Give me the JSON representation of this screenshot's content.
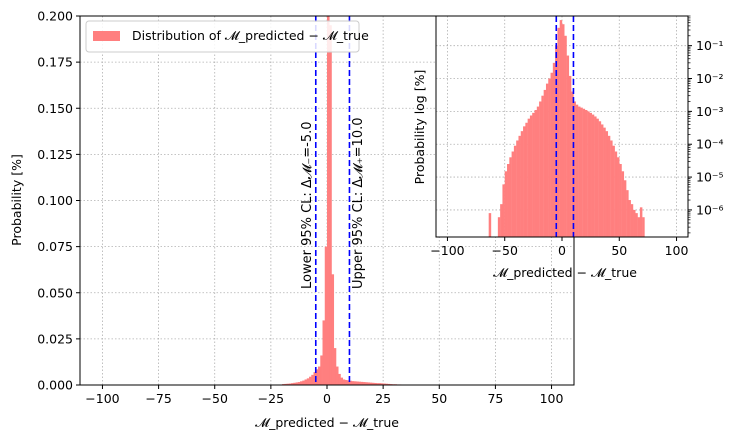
{
  "colors": {
    "bar": "#ff7f7f",
    "ci_line": "#0000ff",
    "grid": "#b0b0b0"
  },
  "chart_data": [
    {
      "type": "bar",
      "title": "",
      "xlabel": "𝓜_predicted − 𝓜_true",
      "ylabel": "Probability [%]",
      "xlim": [
        -110,
        110
      ],
      "ylim": [
        0,
        0.2
      ],
      "x_ticks": [
        -100,
        -75,
        -50,
        -25,
        0,
        25,
        50,
        75,
        100
      ],
      "y_ticks": [
        0.0,
        0.025,
        0.05,
        0.075,
        0.1,
        0.125,
        0.15,
        0.175,
        0.2
      ],
      "x_tick_labels": [
        "−100",
        "−75",
        "−50",
        "−25",
        "0",
        "25",
        "50",
        "75",
        "100"
      ],
      "y_tick_labels": [
        "0.000",
        "0.025",
        "0.050",
        "0.075",
        "0.100",
        "0.125",
        "0.150",
        "0.175",
        "0.200"
      ],
      "grid": true,
      "legend": {
        "placement": "upper-left",
        "entries": [
          "Distribution of 𝓜_predicted − 𝓜_true"
        ]
      },
      "series": [
        {
          "bin_width": 1,
          "x": [
            -20,
            -19,
            -18,
            -17,
            -16,
            -15,
            -14,
            -13,
            -12,
            -11,
            -10,
            -9,
            -8,
            -7,
            -6,
            -5,
            -4,
            -3,
            -2,
            -1,
            0,
            1,
            2,
            3,
            4,
            5,
            6,
            7,
            8,
            9,
            10,
            11,
            12,
            13,
            14,
            15,
            16,
            17,
            18,
            19,
            20,
            21,
            22,
            23,
            24,
            25,
            26,
            27,
            28,
            29,
            30,
            31,
            32,
            33,
            34
          ],
          "values": [
            0.0005,
            0.0006,
            0.0007,
            0.0008,
            0.001,
            0.0012,
            0.0014,
            0.0016,
            0.002,
            0.0024,
            0.003,
            0.0036,
            0.0045,
            0.0055,
            0.007,
            0.0085,
            0.01,
            0.016,
            0.035,
            0.075,
            0.2,
            0.195,
            0.06,
            0.02,
            0.01,
            0.006,
            0.004,
            0.003,
            0.0027,
            0.0025,
            0.0023,
            0.0021,
            0.002,
            0.0019,
            0.0018,
            0.0017,
            0.0016,
            0.0015,
            0.0014,
            0.0013,
            0.0012,
            0.0011,
            0.001,
            0.001,
            0.0009,
            0.0008,
            0.0007,
            0.0006,
            0.0005,
            0.0004,
            0.0004,
            0.0003,
            0.0003,
            0.0002,
            0.0002
          ]
        }
      ],
      "annotations": [
        {
          "x": -5,
          "text": "Lower 95% CL: Δ𝓜₋=-5.0"
        },
        {
          "x": 10,
          "text": "Upper 95% CL: Δ𝓜₊=10.0"
        }
      ]
    },
    {
      "type": "bar",
      "title": "",
      "xlabel": "𝓜_predicted − 𝓜_true",
      "ylabel": "Probability log [%]",
      "xlim": [
        -110,
        110
      ],
      "yscale": "log",
      "ylim": [
        1.5e-07,
        0.8
      ],
      "x_ticks": [
        -100,
        -50,
        0,
        50,
        100
      ],
      "x_tick_labels": [
        "−100",
        "−50",
        "0",
        "50",
        "100"
      ],
      "y_ticks": [
        1e-06,
        1e-05,
        0.0001,
        0.001,
        0.01,
        0.1
      ],
      "y_tick_labels": [
        "10⁻⁶",
        "10⁻⁵",
        "10⁻⁴",
        "10⁻³",
        "10⁻²",
        "10⁻¹"
      ],
      "grid": true,
      "ci_lines": [
        -5,
        10
      ],
      "series": [
        {
          "bin_width": 2,
          "x": [
            -64,
            -56,
            -54,
            -52,
            -50,
            -48,
            -46,
            -44,
            -42,
            -40,
            -38,
            -36,
            -34,
            -32,
            -30,
            -28,
            -26,
            -24,
            -22,
            -20,
            -18,
            -16,
            -14,
            -12,
            -10,
            -8,
            -6,
            -4,
            -2,
            0,
            2,
            4,
            6,
            8,
            10,
            12,
            14,
            16,
            18,
            20,
            22,
            24,
            26,
            28,
            30,
            32,
            34,
            36,
            38,
            40,
            42,
            44,
            46,
            48,
            50,
            52,
            54,
            56,
            58,
            60,
            62,
            64,
            66,
            68,
            70
          ],
          "values": [
            8e-07,
            6e-07,
            1.5e-06,
            6e-06,
            1.5e-05,
            2.5e-05,
            4e-05,
            6e-05,
            9e-05,
            0.00013,
            0.00018,
            0.00025,
            0.00035,
            0.00045,
            0.0006,
            0.00075,
            0.0009,
            0.0011,
            0.0014,
            0.002,
            0.003,
            0.0045,
            0.007,
            0.01,
            0.015,
            0.03,
            0.1,
            0.35,
            0.6,
            0.45,
            0.2,
            0.05,
            0.012,
            0.004,
            0.002,
            0.0016,
            0.0014,
            0.0013,
            0.0012,
            0.0011,
            0.001,
            0.0009,
            0.0008,
            0.0007,
            0.0006,
            0.0005,
            0.0004,
            0.00032,
            0.00025,
            0.00018,
            0.00013,
            9e-05,
            6e-05,
            4e-05,
            2.5e-05,
            1.5e-05,
            8e-06,
            4e-06,
            2e-06,
            1.5e-06,
            1e-06,
            8e-07,
            6e-07,
            1.2e-06,
            6e-07
          ]
        }
      ]
    }
  ]
}
